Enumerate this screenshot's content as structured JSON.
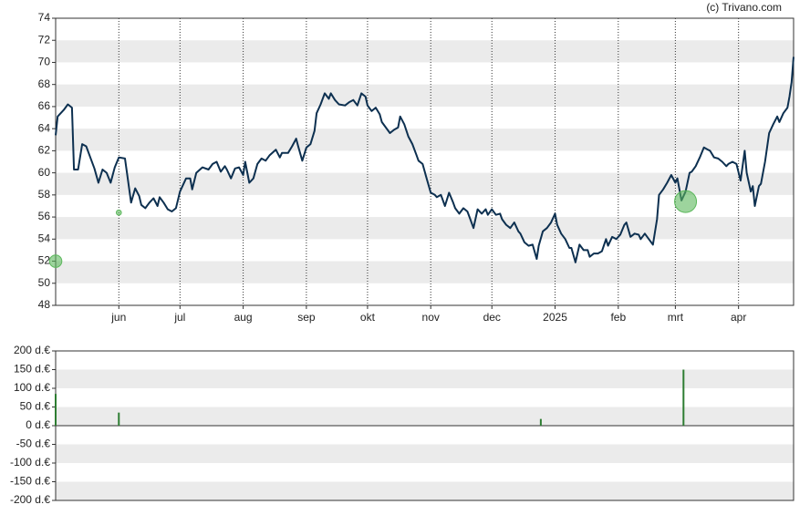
{
  "chart_data": [
    {
      "type": "line",
      "credit": "(c) Trivano.com",
      "color": "#0d3050",
      "x": [
        0,
        1,
        4,
        6,
        8,
        9,
        11,
        13,
        15,
        17,
        19,
        21,
        23,
        25,
        27,
        29,
        31,
        34,
        35,
        37,
        39,
        41,
        42,
        44,
        46,
        48,
        50,
        51,
        53,
        55,
        57,
        59,
        61,
        64,
        66,
        67,
        69,
        72,
        75,
        77,
        79,
        81,
        83,
        84,
        86,
        88,
        90,
        92,
        93,
        95,
        97,
        99,
        101,
        103,
        105,
        108,
        110,
        111,
        114,
        116,
        118,
        119,
        121,
        123,
        125,
        127,
        128,
        130,
        132,
        134,
        135,
        137,
        139,
        142,
        144,
        146,
        148,
        150,
        152,
        153,
        155,
        157,
        159,
        160,
        162,
        164,
        166,
        168,
        169,
        171,
        173,
        175,
        177,
        178,
        180,
        182,
        184,
        186,
        187,
        189,
        191,
        193,
        195,
        196,
        198,
        200,
        202,
        203,
        205,
        207,
        209,
        211,
        212,
        214,
        216,
        218,
        219,
        221,
        223,
        225,
        227,
        228,
        230,
        232,
        234,
        236,
        237,
        239,
        241,
        243,
        245,
        246,
        248,
        250,
        252,
        253,
        255,
        257,
        259,
        261,
        262,
        264,
        266,
        268,
        270,
        271,
        273,
        275,
        277,
        279,
        280,
        282,
        284,
        286,
        287,
        289,
        291,
        293,
        295,
        296,
        298,
        300,
        302,
        304,
        305,
        307,
        309,
        311,
        312,
        314,
        316,
        318,
        320,
        321,
        323,
        325,
        327,
        329,
        330,
        332,
        334,
        336,
        338,
        339,
        341,
        342,
        343,
        345,
        346,
        348,
        350,
        352,
        354,
        355,
        357,
        359,
        360,
        361,
        362
      ],
      "values": [
        63.4,
        65.1,
        65.7,
        66.2,
        65.9,
        60.3,
        60.3,
        62.6,
        62.4,
        61.4,
        60.4,
        59.1,
        60.3,
        60.0,
        59.1,
        60.5,
        61.4,
        61.3,
        60.0,
        57.3,
        58.6,
        57.9,
        57.1,
        56.8,
        57.3,
        57.7,
        57.0,
        57.8,
        57.3,
        56.7,
        56.5,
        56.8,
        58.3,
        59.5,
        59.5,
        58.5,
        60.0,
        60.5,
        60.3,
        60.8,
        61.0,
        60.1,
        60.6,
        60.3,
        59.5,
        60.4,
        60.5,
        59.8,
        61.0,
        59.1,
        59.5,
        60.8,
        61.3,
        61.1,
        61.6,
        62.1,
        61.4,
        61.8,
        61.8,
        62.4,
        63.1,
        62.4,
        61.1,
        62.3,
        62.6,
        63.8,
        65.4,
        66.2,
        67.2,
        66.7,
        67.2,
        66.6,
        66.2,
        66.1,
        66.4,
        66.6,
        66.1,
        67.2,
        66.9,
        66.1,
        65.6,
        65.9,
        65.3,
        64.6,
        64.1,
        63.6,
        63.9,
        64.1,
        65.1,
        64.4,
        63.3,
        62.6,
        61.6,
        61.1,
        60.8,
        59.5,
        58.2,
        58.0,
        57.8,
        58.0,
        57.0,
        58.2,
        57.3,
        56.8,
        56.3,
        56.8,
        56.5,
        56.0,
        55.0,
        56.7,
        56.3,
        56.7,
        56.2,
        56.7,
        56.2,
        56.3,
        55.8,
        55.3,
        55.0,
        55.5,
        54.7,
        54.5,
        53.7,
        53.4,
        53.5,
        52.2,
        53.4,
        54.7,
        55.0,
        55.5,
        56.3,
        55.3,
        54.5,
        54.0,
        53.2,
        53.2,
        51.9,
        53.5,
        53.0,
        53.0,
        52.4,
        52.7,
        52.7,
        52.9,
        54.0,
        53.4,
        54.2,
        54.0,
        54.4,
        55.3,
        55.5,
        54.2,
        54.5,
        54.4,
        54.0,
        54.5,
        54.0,
        53.5,
        55.8,
        58.0,
        58.5,
        59.1,
        59.8,
        59.1,
        59.5,
        57.5,
        58.3,
        60.0,
        60.1,
        60.6,
        61.4,
        62.3,
        62.1,
        62.0,
        61.4,
        61.3,
        61.0,
        60.6,
        60.8,
        61.0,
        60.8,
        59.3,
        62.0,
        60.0,
        58.3,
        58.8,
        57.0,
        58.8,
        59.0,
        61.0,
        63.6,
        64.4,
        65.1,
        64.6,
        65.4,
        65.9,
        66.9,
        68.2,
        70.5
      ],
      "markers": {
        "x": [
          0,
          31,
          309
        ],
        "values": [
          52,
          56.4,
          57.4
        ],
        "sizes": [
          85,
          35,
          150
        ],
        "color": "#5cb85c"
      },
      "xlim": [
        0,
        362
      ],
      "xticks": [
        {
          "value": 31,
          "label": "jun"
        },
        {
          "value": 61,
          "label": "jul"
        },
        {
          "value": 92,
          "label": "aug"
        },
        {
          "value": 123,
          "label": "sep"
        },
        {
          "value": 153,
          "label": "okt"
        },
        {
          "value": 184,
          "label": "nov"
        },
        {
          "value": 214,
          "label": "dec"
        },
        {
          "value": 245,
          "label": "2025"
        },
        {
          "value": 276,
          "label": "feb"
        },
        {
          "value": 304,
          "label": "mrt"
        },
        {
          "value": 335,
          "label": "apr"
        }
      ],
      "ylim": [
        48,
        74
      ],
      "yticks": [
        74,
        72,
        70,
        68,
        66,
        64,
        62,
        60,
        58,
        56,
        54,
        52,
        50,
        48
      ],
      "grid": "bands"
    },
    {
      "type": "bar",
      "color": "#2e7d32",
      "x": [
        0,
        31,
        238,
        308
      ],
      "values": [
        85,
        35,
        18,
        150
      ],
      "xlim": [
        0,
        362
      ],
      "ylim": [
        -200,
        200
      ],
      "yticks": [
        {
          "value": 200,
          "label": "200 d.€"
        },
        {
          "value": 150,
          "label": "150 d.€"
        },
        {
          "value": 100,
          "label": "100 d.€"
        },
        {
          "value": 50,
          "label": "50 d.€"
        },
        {
          "value": 0,
          "label": "0 d.€"
        },
        {
          "value": -50,
          "label": "-50 d.€"
        },
        {
          "value": -100,
          "label": "-100 d.€"
        },
        {
          "value": -150,
          "label": "-150 d.€"
        },
        {
          "value": -200,
          "label": "-200 d.€"
        }
      ],
      "grid": "bands"
    }
  ]
}
